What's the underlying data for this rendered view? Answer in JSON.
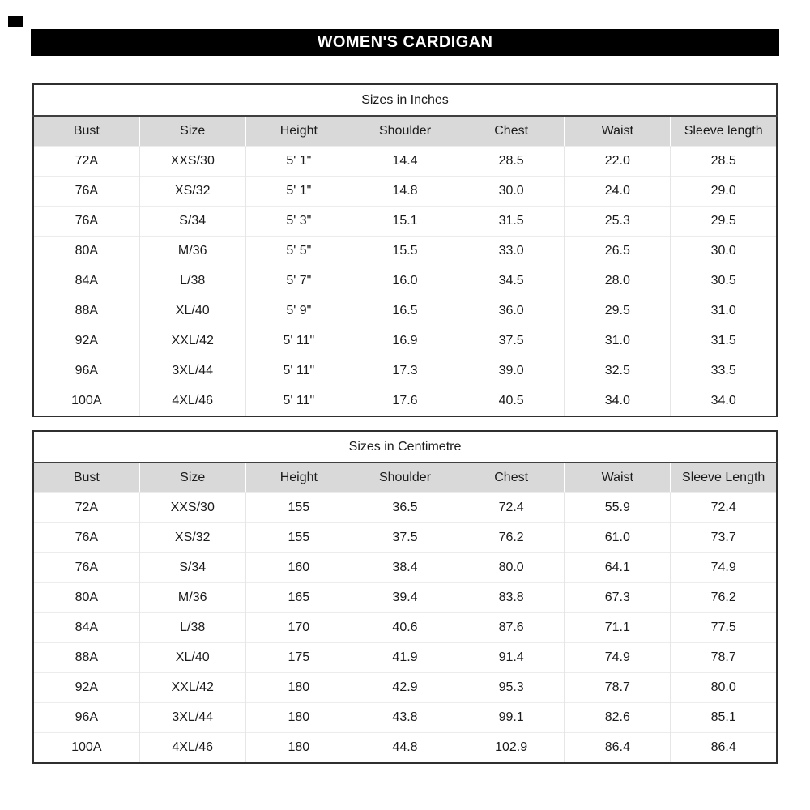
{
  "banner": {
    "title": "WOMEN'S CARDIGAN"
  },
  "tables": [
    {
      "title": "Sizes in Inches",
      "columns": [
        "Bust",
        "Size",
        "Height",
        "Shoulder",
        "Chest",
        "Waist",
        "Sleeve length"
      ],
      "rows": [
        [
          "72A",
          "XXS/30",
          "5' 1\"",
          "14.4",
          "28.5",
          "22.0",
          "28.5"
        ],
        [
          "76A",
          "XS/32",
          "5' 1\"",
          "14.8",
          "30.0",
          "24.0",
          "29.0"
        ],
        [
          "76A",
          "S/34",
          "5' 3\"",
          "15.1",
          "31.5",
          "25.3",
          "29.5"
        ],
        [
          "80A",
          "M/36",
          "5' 5\"",
          "15.5",
          "33.0",
          "26.5",
          "30.0"
        ],
        [
          "84A",
          "L/38",
          "5' 7\"",
          "16.0",
          "34.5",
          "28.0",
          "30.5"
        ],
        [
          "88A",
          "XL/40",
          "5' 9\"",
          "16.5",
          "36.0",
          "29.5",
          "31.0"
        ],
        [
          "92A",
          "XXL/42",
          "5' 11\"",
          "16.9",
          "37.5",
          "31.0",
          "31.5"
        ],
        [
          "96A",
          "3XL/44",
          "5' 11\"",
          "17.3",
          "39.0",
          "32.5",
          "33.5"
        ],
        [
          "100A",
          "4XL/46",
          "5' 11\"",
          "17.6",
          "40.5",
          "34.0",
          "34.0"
        ]
      ]
    },
    {
      "title": "Sizes in Centimetre",
      "columns": [
        "Bust",
        "Size",
        "Height",
        "Shoulder",
        "Chest",
        "Waist",
        "Sleeve Length"
      ],
      "rows": [
        [
          "72A",
          "XXS/30",
          "155",
          "36.5",
          "72.4",
          "55.9",
          "72.4"
        ],
        [
          "76A",
          "XS/32",
          "155",
          "37.5",
          "76.2",
          "61.0",
          "73.7"
        ],
        [
          "76A",
          "S/34",
          "160",
          "38.4",
          "80.0",
          "64.1",
          "74.9"
        ],
        [
          "80A",
          "M/36",
          "165",
          "39.4",
          "83.8",
          "67.3",
          "76.2"
        ],
        [
          "84A",
          "L/38",
          "170",
          "40.6",
          "87.6",
          "71.1",
          "77.5"
        ],
        [
          "88A",
          "XL/40",
          "175",
          "41.9",
          "91.4",
          "74.9",
          "78.7"
        ],
        [
          "92A",
          "XXL/42",
          "180",
          "42.9",
          "95.3",
          "78.7",
          "80.0"
        ],
        [
          "96A",
          "3XL/44",
          "180",
          "43.8",
          "99.1",
          "82.6",
          "85.1"
        ],
        [
          "100A",
          "4XL/46",
          "180",
          "44.8",
          "102.9",
          "86.4",
          "86.4"
        ]
      ]
    }
  ],
  "colors": {
    "banner_bg": "#000000",
    "banner_text": "#ffffff",
    "header_row_bg": "#d9d9d9",
    "text": "#1a1a1a",
    "border_dark": "#2f2f2f",
    "grid_light": "#e8e8e8"
  }
}
